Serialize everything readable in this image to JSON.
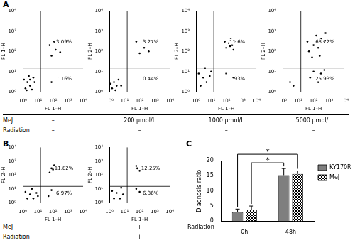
{
  "panels": [
    {
      "label": "A",
      "rows": [
        {
          "label": "MeJ",
          "cells": [
            "–",
            "200 μmol/L",
            "1000 μmol/L",
            "5000 μmol/L"
          ]
        },
        {
          "label": "Radiation",
          "cells": [
            "–",
            "–",
            "–",
            "–"
          ]
        }
      ]
    },
    {
      "label": "B",
      "rows": [
        {
          "label": "MeJ",
          "cells": [
            "–",
            "+"
          ]
        },
        {
          "label": "Radiation",
          "cells": [
            "+",
            "+"
          ]
        }
      ]
    },
    {
      "label": "C"
    }
  ],
  "chart_data": [
    {
      "type": "scatter",
      "x_label": "FL 1–H",
      "y_label": "FL 1–H",
      "log": true,
      "grid": false,
      "color": "#000000",
      "marker": "dot",
      "xlim": [
        1,
        10000
      ],
      "ylim": [
        1,
        10000
      ],
      "xticks": [
        {
          "value": 1,
          "label": "10⁰"
        },
        {
          "value": 10,
          "label": "10¹"
        },
        {
          "value": 100,
          "label": "10²"
        },
        {
          "value": 1000,
          "label": "10³"
        },
        {
          "value": 10000,
          "label": "10⁴"
        }
      ],
      "yticks": [
        {
          "value": 1,
          "label": "10⁰"
        },
        {
          "value": 10,
          "label": "10¹"
        },
        {
          "value": 100,
          "label": "10²"
        },
        {
          "value": 1000,
          "label": "10³"
        },
        {
          "value": 10000,
          "label": "10⁴"
        }
      ],
      "gates": {
        "x": 15,
        "y": 15
      },
      "quadrant_labels": {
        "upper right": "3.09%",
        "lower right": "1.16%"
      },
      "x": [
        1.5,
        2,
        3,
        1.2,
        4,
        2.5,
        6,
        1.8,
        3,
        5,
        80,
        150,
        60,
        300,
        120,
        200,
        80
      ],
      "values": [
        1.5,
        3,
        2,
        4,
        1.3,
        6,
        3,
        1.2,
        4,
        5,
        60,
        120,
        200,
        90,
        300,
        5,
        3
      ]
    },
    {
      "type": "scatter",
      "x_label": "FL 1–H",
      "y_label": "FL 2–H",
      "log": true,
      "grid": false,
      "color": "#000000",
      "marker": "dot",
      "xlim": [
        1,
        10000
      ],
      "ylim": [
        1,
        10000
      ],
      "xticks": [
        {
          "value": 1,
          "label": "10⁰"
        },
        {
          "value": 10,
          "label": "10¹"
        },
        {
          "value": 100,
          "label": "10²"
        },
        {
          "value": 1000,
          "label": "10³"
        },
        {
          "value": 10000,
          "label": "10⁴"
        }
      ],
      "yticks": [
        {
          "value": 1,
          "label": "10⁰"
        },
        {
          "value": 10,
          "label": "10¹"
        },
        {
          "value": 100,
          "label": "10²"
        },
        {
          "value": 1000,
          "label": "10³"
        },
        {
          "value": 10000,
          "label": "10⁴"
        }
      ],
      "gates": {
        "x": 15,
        "y": 15
      },
      "quadrant_labels": {
        "upper right": "3.27%",
        "lower right": "0.44%"
      },
      "x": [
        1.5,
        2,
        3,
        4,
        1.2,
        2.5,
        6,
        100,
        200,
        60,
        400
      ],
      "values": [
        1.5,
        3,
        2,
        4,
        2.5,
        1.2,
        2,
        80,
        150,
        300,
        100
      ]
    },
    {
      "type": "scatter",
      "x_label": "FL 1–H",
      "y_label": "FL 2–H",
      "log": true,
      "grid": false,
      "color": "#000000",
      "marker": "dot",
      "xlim": [
        1,
        10000
      ],
      "ylim": [
        1,
        10000
      ],
      "xticks": [
        {
          "value": 1,
          "label": "10⁰"
        },
        {
          "value": 10,
          "label": "10¹"
        },
        {
          "value": 100,
          "label": "10²"
        },
        {
          "value": 1000,
          "label": "10³"
        },
        {
          "value": 10000,
          "label": "10⁴"
        }
      ],
      "yticks": [
        {
          "value": 1,
          "label": "10⁰"
        },
        {
          "value": 10,
          "label": "10¹"
        },
        {
          "value": 100,
          "label": "10²"
        },
        {
          "value": 1000,
          "label": "10³"
        },
        {
          "value": 10000,
          "label": "10⁴"
        }
      ],
      "gates": {
        "x": 15,
        "y": 15
      },
      "quadrant_labels": {
        "upper right": "11.6%",
        "lower right": "1.93%"
      },
      "x": [
        2,
        3,
        5,
        1.5,
        8,
        4,
        10,
        100,
        150,
        250,
        200,
        80,
        300,
        180,
        400,
        100,
        300
      ],
      "values": [
        2,
        5,
        3,
        8,
        6,
        15,
        10,
        150,
        250,
        200,
        400,
        300,
        120,
        180,
        300,
        8,
        5
      ]
    },
    {
      "type": "scatter",
      "x_label": "FL 1–H",
      "y_label": "FL 2–H",
      "log": true,
      "grid": false,
      "color": "#000000",
      "marker": "dot",
      "xlim": [
        1,
        10000
      ],
      "ylim": [
        1,
        10000
      ],
      "xticks": [
        {
          "value": 1,
          "label": "10⁰"
        },
        {
          "value": 10,
          "label": "10¹"
        },
        {
          "value": 100,
          "label": "10²"
        },
        {
          "value": 1000,
          "label": "10³"
        },
        {
          "value": 10000,
          "label": "10⁴"
        }
      ],
      "yticks": [
        {
          "value": 1,
          "label": "10⁰"
        },
        {
          "value": 10,
          "label": "10¹"
        },
        {
          "value": 100,
          "label": "10²"
        },
        {
          "value": 1000,
          "label": "10³"
        },
        {
          "value": 10000,
          "label": "10⁴"
        }
      ],
      "gates": {
        "x": 15,
        "y": 15
      },
      "quadrant_labels": {
        "upper right": "68.72%",
        "lower right": "25.93%"
      },
      "x": [
        50,
        100,
        200,
        300,
        150,
        500,
        80,
        40,
        600,
        250,
        100,
        300,
        60,
        200,
        500,
        3,
        5
      ],
      "values": [
        100,
        200,
        150,
        400,
        600,
        300,
        50,
        300,
        800,
        60,
        10,
        8,
        5,
        3,
        12,
        3,
        2
      ]
    },
    {
      "type": "scatter",
      "x_label": "FL 1–H",
      "y_label": "FL 2–H",
      "log": true,
      "grid": false,
      "color": "#000000",
      "marker": "dot",
      "xlim": [
        1,
        10000
      ],
      "ylim": [
        1,
        10000
      ],
      "xticks": [
        {
          "value": 1,
          "label": "10⁰"
        },
        {
          "value": 10,
          "label": "10¹"
        },
        {
          "value": 100,
          "label": "10²"
        },
        {
          "value": 1000,
          "label": "10³"
        },
        {
          "value": 10000,
          "label": "10⁴"
        }
      ],
      "yticks": [
        {
          "value": 1,
          "label": "10⁰"
        },
        {
          "value": 10,
          "label": "10¹"
        },
        {
          "value": 100,
          "label": "10²"
        },
        {
          "value": 1000,
          "label": "10³"
        },
        {
          "value": 10000,
          "label": "10⁴"
        }
      ],
      "gates": {
        "x": 15,
        "y": 15
      },
      "quadrant_labels": {
        "upper right": "11.82%",
        "lower right": "6.97%"
      },
      "x": [
        2,
        3,
        5,
        1.5,
        8,
        4,
        10,
        80,
        150,
        100,
        200,
        60,
        120,
        80,
        200,
        50
      ],
      "values": [
        2,
        4,
        2,
        6,
        5,
        10,
        3,
        300,
        400,
        250,
        300,
        150,
        500,
        8,
        5,
        3
      ]
    },
    {
      "type": "scatter",
      "x_label": "FL 1–H",
      "y_label": "FL 2–H",
      "log": true,
      "grid": false,
      "color": "#000000",
      "marker": "dot",
      "xlim": [
        1,
        10000
      ],
      "ylim": [
        1,
        10000
      ],
      "xticks": [
        {
          "value": 1,
          "label": "10⁰"
        },
        {
          "value": 10,
          "label": "10¹"
        },
        {
          "value": 100,
          "label": "10²"
        },
        {
          "value": 1000,
          "label": "10³"
        },
        {
          "value": 10000,
          "label": "10⁴"
        }
      ],
      "yticks": [
        {
          "value": 1,
          "label": "10⁰"
        },
        {
          "value": 10,
          "label": "10¹"
        },
        {
          "value": 100,
          "label": "10²"
        },
        {
          "value": 1000,
          "label": "10³"
        },
        {
          "value": 10000,
          "label": "10⁴"
        }
      ],
      "gates": {
        "x": 15,
        "y": 15
      },
      "quadrant_labels": {
        "upper right": "12.25%",
        "lower right": "6.36%"
      },
      "x": [
        2,
        3,
        5,
        1.5,
        8,
        6,
        70,
        150,
        100,
        60,
        200,
        100,
        60,
        300
      ],
      "values": [
        2,
        5,
        2,
        7,
        4,
        12,
        300,
        350,
        200,
        450,
        250,
        6,
        10,
        4
      ]
    },
    {
      "type": "bar",
      "categories": [
        "0h",
        "48h"
      ],
      "x_label": "Radiation",
      "y_label": "Diagnosis ratio",
      "ylim": [
        0,
        20
      ],
      "yticks": [
        0,
        5,
        10,
        15,
        20
      ],
      "grid": false,
      "legend": "upper right",
      "series": [
        {
          "name": "KY170R",
          "color": "#7f7f7f",
          "values": [
            3.0,
            15.2
          ],
          "errors": [
            1.0,
            2.2
          ]
        },
        {
          "name": "MeJ",
          "color": "#000000",
          "values": [
            3.8,
            15.6
          ],
          "errors": [
            1.2,
            1.0
          ]
        }
      ],
      "annotations": [
        {
          "text": "*",
          "from": {
            "series": "KY170R",
            "category": "0h"
          },
          "to": {
            "series": "MeJ",
            "category": "48h"
          }
        },
        {
          "text": "*",
          "from": {
            "series": "MeJ",
            "category": "0h"
          },
          "to": {
            "series": "KY170R",
            "category": "48h"
          }
        }
      ]
    }
  ]
}
